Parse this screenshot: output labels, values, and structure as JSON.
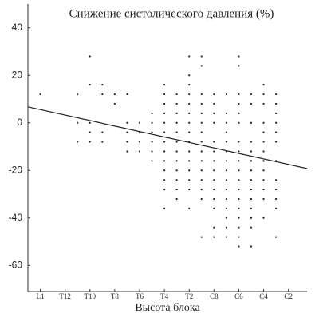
{
  "chart_data": {
    "type": "scatter",
    "title": "Снижение систолического давления (%)",
    "x_label": "Высота блока",
    "xlim": [
      -1,
      21.5
    ],
    "ylim": [
      -71,
      50
    ],
    "xticks": [
      {
        "value": 0,
        "label": "L1"
      },
      {
        "value": 2,
        "label": "T12"
      },
      {
        "value": 4,
        "label": "T10"
      },
      {
        "value": 6,
        "label": "T8"
      },
      {
        "value": 8,
        "label": "T6"
      },
      {
        "value": 10,
        "label": "T4"
      },
      {
        "value": 12,
        "label": "T2"
      },
      {
        "value": 14,
        "label": "C8"
      },
      {
        "value": 16,
        "label": "C6"
      },
      {
        "value": 18,
        "label": "C4"
      },
      {
        "value": 20,
        "label": "C2"
      }
    ],
    "yticks": [
      -60,
      -40,
      -20,
      0,
      20,
      40
    ],
    "series": [
      {
        "color": "#222222",
        "x": [
          0,
          3,
          3,
          3,
          4,
          4,
          4,
          4,
          4,
          5,
          5,
          5,
          5,
          6,
          6,
          7,
          7,
          7,
          7,
          7,
          8,
          8,
          8,
          8,
          9,
          9,
          9,
          9,
          9,
          9,
          10,
          10,
          10,
          10,
          10,
          10,
          10,
          10,
          10,
          10,
          10,
          10,
          10,
          11,
          11,
          11,
          11,
          11,
          11,
          11,
          11,
          11,
          11,
          11,
          11,
          12,
          12,
          12,
          12,
          12,
          12,
          12,
          12,
          12,
          12,
          12,
          12,
          12,
          12,
          12,
          13,
          13,
          13,
          13,
          13,
          13,
          13,
          13,
          13,
          13,
          13,
          13,
          13,
          13,
          13,
          14,
          14,
          14,
          14,
          14,
          14,
          14,
          14,
          14,
          14,
          14,
          14,
          14,
          14,
          15,
          15,
          15,
          15,
          15,
          15,
          15,
          15,
          15,
          15,
          15,
          15,
          15,
          15,
          15,
          16,
          16,
          16,
          16,
          16,
          16,
          16,
          16,
          16,
          16,
          16,
          16,
          16,
          16,
          16,
          16,
          16,
          16,
          17,
          17,
          17,
          17,
          17,
          17,
          17,
          17,
          17,
          17,
          17,
          17,
          17,
          17,
          18,
          18,
          18,
          18,
          18,
          18,
          18,
          18,
          18,
          18,
          18,
          18,
          18,
          19,
          19,
          19,
          19,
          19,
          19,
          19,
          19,
          19,
          19,
          19,
          19
        ],
        "values": [
          12,
          12,
          0,
          -8,
          28,
          16,
          0,
          -4,
          -8,
          16,
          12,
          -4,
          -8,
          12,
          8,
          12,
          0,
          -4,
          -8,
          -12,
          0,
          -4,
          -8,
          -12,
          4,
          0,
          -4,
          -8,
          -12,
          -16,
          16,
          12,
          8,
          4,
          0,
          -4,
          -8,
          -12,
          -16,
          -20,
          -24,
          -28,
          -36,
          12,
          8,
          4,
          0,
          -4,
          -8,
          -12,
          -16,
          -20,
          -24,
          -28,
          -32,
          28,
          20,
          16,
          12,
          8,
          4,
          0,
          -4,
          -8,
          -12,
          -16,
          -20,
          -24,
          -28,
          -36,
          28,
          24,
          12,
          8,
          4,
          0,
          -4,
          -8,
          -12,
          -16,
          -20,
          -24,
          -28,
          -32,
          -48,
          12,
          8,
          4,
          0,
          -8,
          -12,
          -16,
          -20,
          -24,
          -28,
          -32,
          -36,
          -44,
          -48,
          12,
          4,
          0,
          -4,
          -8,
          -12,
          -16,
          -20,
          -24,
          -28,
          -32,
          -36,
          -40,
          -44,
          -48,
          28,
          24,
          12,
          8,
          4,
          0,
          -8,
          -12,
          -16,
          -20,
          -24,
          -28,
          -32,
          -36,
          -40,
          -44,
          -48,
          -52,
          12,
          8,
          0,
          -8,
          -12,
          -16,
          -20,
          -24,
          -28,
          -32,
          -36,
          -40,
          -44,
          -52,
          16,
          12,
          8,
          0,
          -4,
          -8,
          -12,
          -16,
          -20,
          -24,
          -28,
          -32,
          -40,
          12,
          8,
          4,
          0,
          -4,
          -8,
          -16,
          -24,
          -28,
          -32,
          -36,
          -48
        ]
      }
    ],
    "trend_line": {
      "x": [
        -1,
        21.5
      ],
      "y": [
        6.7,
        -19.2
      ],
      "color": "#222222"
    }
  }
}
